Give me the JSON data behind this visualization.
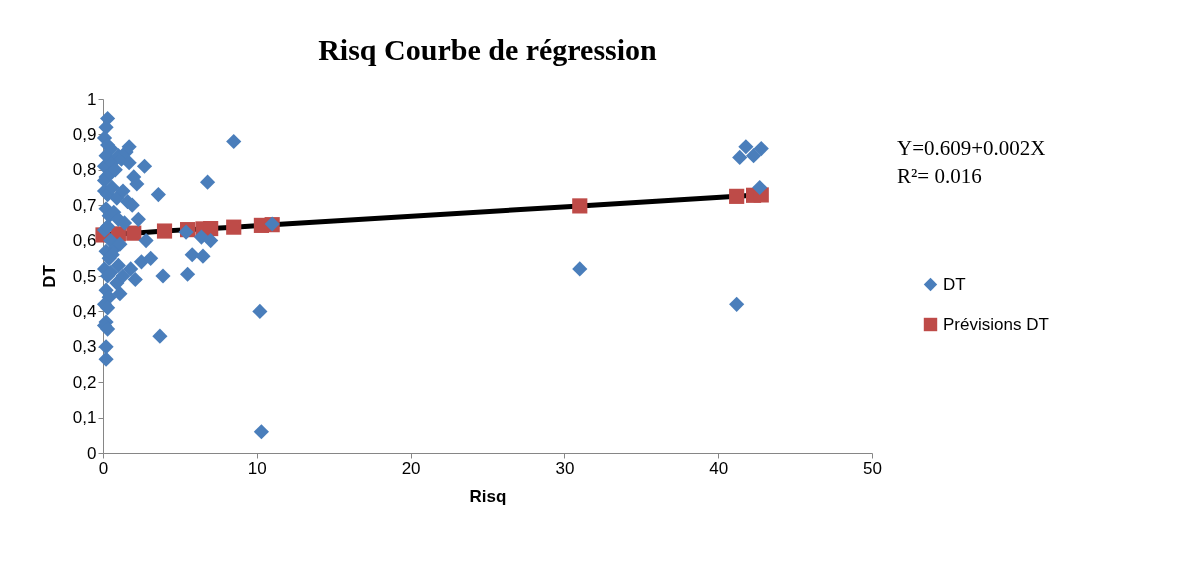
{
  "chart_data": {
    "type": "scatter",
    "title": "Risq Courbe de régression",
    "xlabel": "Risq",
    "ylabel": "DT",
    "annotations": [
      "Y=0.609+0.002X",
      "R²= 0.016"
    ],
    "xlim": [
      0,
      50
    ],
    "xticks": [
      0,
      10,
      20,
      30,
      40,
      50
    ],
    "ylim": [
      0,
      1
    ],
    "yticks": [
      0,
      {
        "value": 0.1,
        "label": "0,1"
      },
      {
        "value": 0.2,
        "label": "0,2"
      },
      {
        "value": 0.3,
        "label": "0,3"
      },
      {
        "value": 0.4,
        "label": "0,4"
      },
      {
        "value": 0.5,
        "label": "0,5"
      },
      {
        "value": 0.6,
        "label": "0,6"
      },
      {
        "value": 0.7,
        "label": "0,7"
      },
      {
        "value": 0.8,
        "label": "0,8"
      },
      {
        "value": 0.9,
        "label": "0,9"
      },
      1
    ],
    "grid": false,
    "legend": "right",
    "series": [
      {
        "name": "DT",
        "marker": "diamond",
        "color": "#4a7ebb",
        "x": [
          0.3,
          0.2,
          0.1,
          0.3,
          0.5,
          0.2,
          0.1,
          0.6,
          0.2,
          0.1,
          0.5,
          0.8,
          1.0,
          1.2,
          1.5,
          1.7,
          2.0,
          2.2,
          0.1,
          0.3,
          0.6,
          0.9,
          1.3,
          1.6,
          1.9,
          2.3,
          0.2,
          0.4,
          0.7,
          1.0,
          1.4,
          0.1,
          0.3,
          0.5,
          0.8,
          1.1,
          0.2,
          0.4,
          0.6,
          1.0,
          1.8,
          2.5,
          0.1,
          0.3,
          0.5,
          0.9,
          1.3,
          2.1,
          0.2,
          0.4,
          0.1,
          0.3,
          0.2,
          0.1,
          0.3,
          0.2,
          1.1,
          1.7,
          2.7,
          3.6,
          3.1,
          2.8,
          0.2,
          3.7,
          3.9,
          5.4,
          5.5,
          5.8,
          6.4,
          6.5,
          7.0,
          6.8,
          8.5,
          10.2,
          10.3,
          11.0,
          31.0,
          41.2,
          41.4,
          41.8,
          42.3,
          42.8,
          42.7
        ],
        "values": [
          0.945,
          0.92,
          0.89,
          0.87,
          0.86,
          0.84,
          0.81,
          0.82,
          0.78,
          0.77,
          0.79,
          0.8,
          0.84,
          0.83,
          0.85,
          0.82,
          0.78,
          0.76,
          0.74,
          0.73,
          0.75,
          0.72,
          0.74,
          0.71,
          0.7,
          0.66,
          0.69,
          0.67,
          0.68,
          0.66,
          0.65,
          0.63,
          0.64,
          0.6,
          0.58,
          0.59,
          0.57,
          0.55,
          0.56,
          0.53,
          0.52,
          0.54,
          0.52,
          0.5,
          0.51,
          0.48,
          0.5,
          0.49,
          0.46,
          0.44,
          0.42,
          0.41,
          0.37,
          0.36,
          0.35,
          0.3,
          0.45,
          0.865,
          0.81,
          0.73,
          0.55,
          0.6,
          0.265,
          0.33,
          0.5,
          0.624,
          0.505,
          0.56,
          0.61,
          0.556,
          0.6,
          0.765,
          0.88,
          0.4,
          0.06,
          0.647,
          0.52,
          0.42,
          0.835,
          0.865,
          0.84,
          0.86,
          0.75
        ]
      },
      {
        "name": "Prévisions DT",
        "type": "line",
        "marker": "square",
        "color": "#be4b48",
        "x": [
          0,
          1,
          2,
          4,
          5.5,
          6.5,
          7,
          8.5,
          10.3,
          11,
          31,
          41.2,
          42.3,
          42.8
        ],
        "values": [
          0.616,
          0.619,
          0.621,
          0.627,
          0.631,
          0.633,
          0.634,
          0.638,
          0.643,
          0.645,
          0.698,
          0.725,
          0.728,
          0.729
        ]
      }
    ]
  }
}
